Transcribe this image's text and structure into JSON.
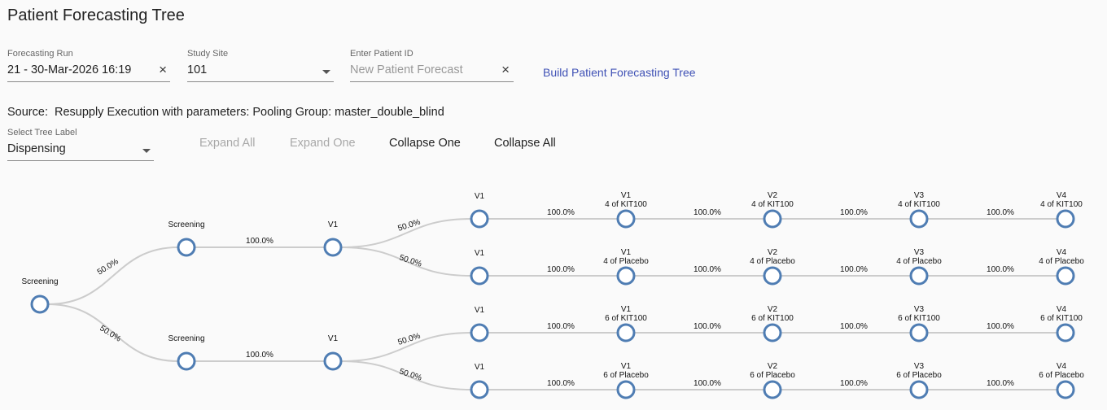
{
  "page": {
    "title": "Patient Forecasting Tree"
  },
  "fields": {
    "forecasting_run": {
      "label": "Forecasting Run",
      "value": "21 - 30-Mar-2026 16:19",
      "clear": "×"
    },
    "study_site": {
      "label": "Study Site",
      "value": "101"
    },
    "patient_id": {
      "label": "Enter Patient ID",
      "placeholder": "New Patient Forecast",
      "clear": "×"
    },
    "build_button": "Build Patient Forecasting Tree"
  },
  "source": {
    "label": "Source:",
    "text": "Resupply Execution with parameters: Pooling Group: master_double_blind"
  },
  "tree_label": {
    "label": "Select Tree Label",
    "value": "Dispensing"
  },
  "tree_actions": {
    "expand_all": "Expand All",
    "expand_one": "Expand One",
    "collapse_one": "Collapse One",
    "collapse_all": "Collapse All"
  },
  "colors": {
    "node_stroke": "#4f7db3",
    "link": "#cccccc",
    "accent": "#3f51b5"
  },
  "tree": {
    "root": {
      "label": "Screening"
    },
    "branches": [
      {
        "pct": "50.0%",
        "screening": "Screening",
        "screening_to_v1_pct": "100.0%",
        "v1": "V1",
        "arms": [
          {
            "pct": "50.0%",
            "first": "V1",
            "chain": [
              {
                "label": "V1",
                "sub": "4 of KIT100",
                "pct": "100.0%"
              },
              {
                "label": "V2",
                "sub": "4 of KIT100",
                "pct": "100.0%"
              },
              {
                "label": "V3",
                "sub": "4 of KIT100",
                "pct": "100.0%"
              },
              {
                "label": "V4",
                "sub": "4 of KIT100",
                "pct": "100.0%"
              }
            ]
          },
          {
            "pct": "50.0%",
            "first": "V1",
            "chain": [
              {
                "label": "V1",
                "sub": "4 of Placebo",
                "pct": "100.0%"
              },
              {
                "label": "V2",
                "sub": "4 of Placebo",
                "pct": "100.0%"
              },
              {
                "label": "V3",
                "sub": "4 of Placebo",
                "pct": "100.0%"
              },
              {
                "label": "V4",
                "sub": "4 of Placebo",
                "pct": "100.0%"
              }
            ]
          }
        ]
      },
      {
        "pct": "50.0%",
        "screening": "Screening",
        "screening_to_v1_pct": "100.0%",
        "v1": "V1",
        "arms": [
          {
            "pct": "50.0%",
            "first": "V1",
            "chain": [
              {
                "label": "V1",
                "sub": "6 of KIT100",
                "pct": "100.0%"
              },
              {
                "label": "V2",
                "sub": "6 of KIT100",
                "pct": "100.0%"
              },
              {
                "label": "V3",
                "sub": "6 of KIT100",
                "pct": "100.0%"
              },
              {
                "label": "V4",
                "sub": "6 of KIT100",
                "pct": "100.0%"
              }
            ]
          },
          {
            "pct": "50.0%",
            "first": "V1",
            "chain": [
              {
                "label": "V1",
                "sub": "6 of Placebo",
                "pct": "100.0%"
              },
              {
                "label": "V2",
                "sub": "6 of Placebo",
                "pct": "100.0%"
              },
              {
                "label": "V3",
                "sub": "6 of Placebo",
                "pct": "100.0%"
              },
              {
                "label": "V4",
                "sub": "6 of Placebo",
                "pct": "100.0%"
              }
            ]
          }
        ]
      }
    ]
  }
}
